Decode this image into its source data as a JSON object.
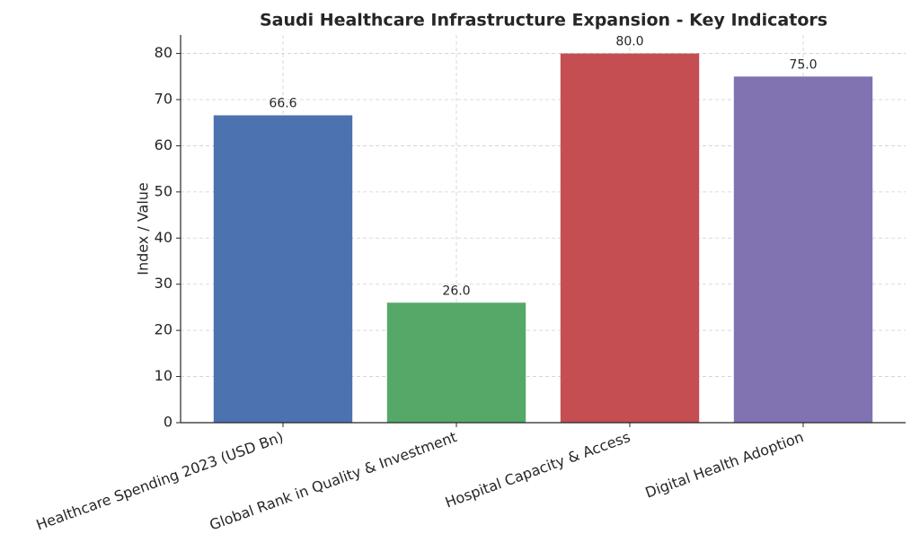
{
  "chart_data": {
    "type": "bar",
    "title": "Saudi Healthcare Infrastructure Expansion - Key Indicators",
    "ylabel": "Index / Value",
    "categories": [
      "Healthcare Spending 2023 (USD Bn)",
      "Global Rank in Quality & Investment",
      "Hospital Capacity & Access",
      "Digital Health Adoption"
    ],
    "values": [
      66.6,
      26,
      80,
      75
    ],
    "value_labels": [
      "66.6",
      "26.0",
      "80.0",
      "75.0"
    ],
    "colors": [
      "#4c72b0",
      "#55a868",
      "#c44e52",
      "#8172b2"
    ],
    "ylim": [
      0,
      84
    ],
    "yticks": [
      0,
      10,
      20,
      30,
      40,
      50,
      60,
      70,
      80
    ],
    "grid": true
  }
}
